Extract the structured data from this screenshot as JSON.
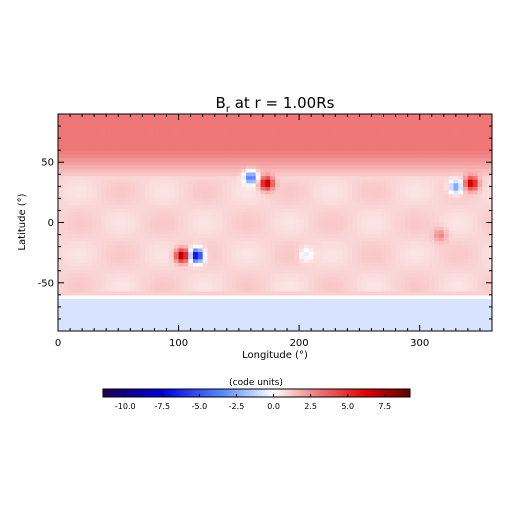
{
  "chart_data": {
    "type": "heatmap",
    "title": "B",
    "title_subscript": "r",
    "title_suffix": " at r = 1.00Rs",
    "xlabel": "Longitude (°)",
    "ylabel": "Latitude (°)",
    "xlim": [
      0,
      360
    ],
    "ylim": [
      -90,
      90
    ],
    "x_ticks": [
      0,
      100,
      200,
      300
    ],
    "y_ticks": [
      -50,
      0,
      50
    ],
    "colorbar": {
      "label": "(code units)",
      "range": [
        -11.5,
        9.2
      ],
      "ticks": [
        "-10.0",
        "-7.5",
        "-5.0",
        "-2.5",
        "0.0",
        "2.5",
        "5.0",
        "7.5"
      ],
      "colormap": [
        "#1a0050",
        "#0000e0",
        "#6090ff",
        "#ffffff",
        "#f08080",
        "#e00000",
        "#600000"
      ]
    },
    "field": {
      "background_north_polar": 3.0,
      "background_midlatitude": 1.2,
      "background_south_polar": -0.8,
      "south_polar_boundary_lat": -62,
      "active_regions": [
        {
          "lon": 160,
          "lat": 38,
          "value": -5.0
        },
        {
          "lon": 173,
          "lat": 33,
          "value": 6.5
        },
        {
          "lon": 103,
          "lat": -27,
          "value": 7.0
        },
        {
          "lon": 115,
          "lat": -27,
          "value": -9.0
        },
        {
          "lon": 206,
          "lat": -26,
          "value": -1.5
        },
        {
          "lon": 330,
          "lat": 30,
          "value": -4.0
        },
        {
          "lon": 343,
          "lat": 33,
          "value": 6.0
        },
        {
          "lon": 317,
          "lat": -10,
          "value": 1.8
        }
      ]
    }
  }
}
